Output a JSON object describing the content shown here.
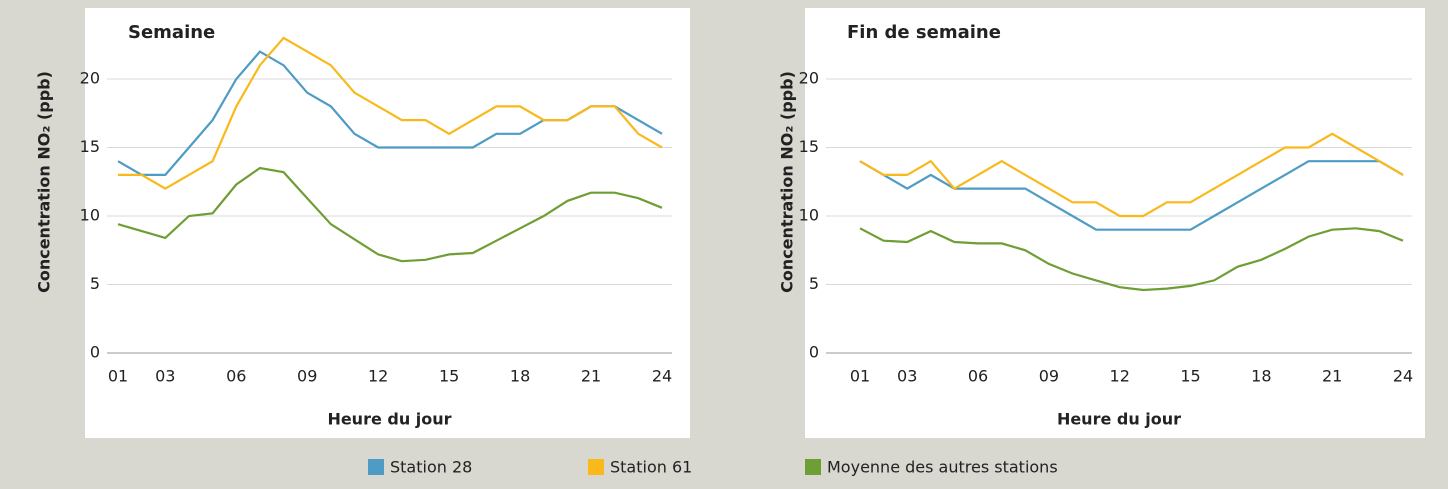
{
  "chart_data": [
    {
      "type": "line",
      "title": "Semaine",
      "xlabel": "Heure du jour",
      "ylabel": "Concentration NO₂ (ppb)",
      "categories": [
        "01",
        null,
        "03",
        null,
        null,
        "06",
        null,
        null,
        "09",
        null,
        null,
        "12",
        null,
        null,
        "15",
        null,
        null,
        "18",
        null,
        null,
        "21",
        null,
        null,
        "24"
      ],
      "ylim": [
        0,
        25
      ],
      "yticks": [
        0,
        5,
        10,
        15,
        20
      ],
      "grid": true,
      "series": [
        {
          "name": "Station 28",
          "color": "#4e9bc5",
          "values": [
            14,
            13,
            13,
            15,
            17,
            20,
            22,
            21,
            19,
            18,
            16,
            15,
            15,
            15,
            15,
            15,
            16,
            16,
            17,
            17,
            18,
            18,
            17,
            16
          ]
        },
        {
          "name": "Station 61",
          "color": "#f9b91b",
          "values": [
            13,
            13,
            12,
            13,
            14,
            18,
            21,
            23,
            22,
            21,
            19,
            18,
            17,
            17,
            16,
            17,
            18,
            18,
            17,
            17,
            18,
            18,
            16,
            15
          ]
        },
        {
          "name": "Moyenne des autres stations",
          "color": "#6e9e34",
          "values": [
            9.4,
            8.9,
            8.4,
            10,
            10.2,
            12.3,
            13.5,
            13.2,
            11.3,
            9.4,
            8.3,
            7.2,
            6.7,
            6.8,
            7.2,
            7.3,
            8.2,
            9.1,
            10,
            11.1,
            11.7,
            11.7,
            11.3,
            10.6
          ]
        }
      ]
    },
    {
      "type": "line",
      "title": "Fin de semaine",
      "xlabel": "Heure du jour",
      "ylabel": "Concentration NO₂ (ppb)",
      "categories": [
        "01",
        null,
        "03",
        null,
        null,
        "06",
        null,
        null,
        "09",
        null,
        null,
        "12",
        null,
        null,
        "15",
        null,
        null,
        "18",
        null,
        null,
        "21",
        null,
        null,
        "24"
      ],
      "ylim": [
        0,
        25
      ],
      "yticks": [
        0,
        5,
        10,
        15,
        20
      ],
      "grid": true,
      "series": [
        {
          "color": "#4e9bc5",
          "values": [
            14,
            13,
            12,
            13,
            12,
            12,
            12,
            12,
            11,
            10,
            9,
            9,
            9,
            9,
            9,
            10,
            11,
            12,
            13,
            14,
            14,
            14,
            14,
            13
          ]
        },
        {
          "color": "#f9b91b",
          "values": [
            14,
            13,
            13,
            14,
            12,
            13,
            14,
            13,
            12,
            11,
            11,
            10,
            10,
            11,
            11,
            12,
            13,
            14,
            15,
            15,
            16,
            15,
            14,
            13
          ]
        },
        {
          "color": "#6e9e34",
          "values": [
            9.1,
            8.2,
            8.1,
            8.9,
            8.1,
            8,
            8,
            7.5,
            6.5,
            5.8,
            5.3,
            4.8,
            4.6,
            4.7,
            4.9,
            5.3,
            6.3,
            6.8,
            7.6,
            8.5,
            9,
            9.1,
            8.9,
            8.2
          ]
        }
      ]
    }
  ]
}
